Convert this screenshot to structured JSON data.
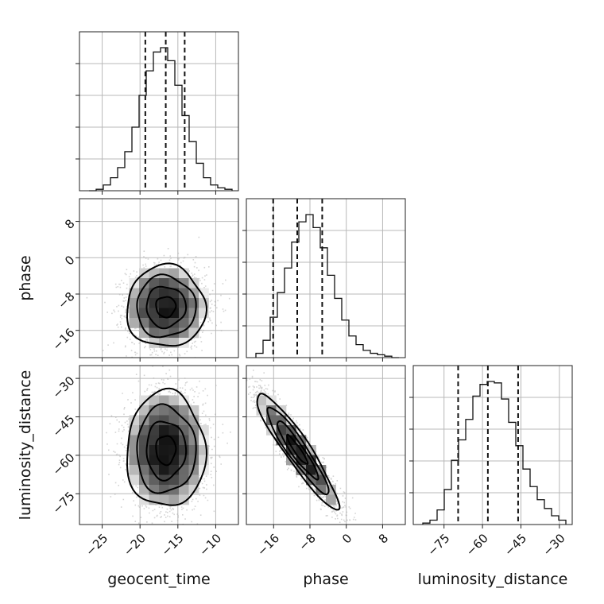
{
  "chart_data": {
    "type": "corner",
    "grid": true,
    "parameters": [
      "geocent_time",
      "phase",
      "luminosity_distance"
    ],
    "axis_labels": {
      "geocent_time": "geocent_time",
      "phase": "phase",
      "luminosity_distance": "luminosity_distance"
    },
    "ranges": {
      "geocent_time": [
        -28,
        -7
      ],
      "phase": [
        -22,
        13
      ],
      "luminosity_distance": [
        -87,
        -25
      ]
    },
    "ticks": {
      "geocent_time": [
        -25,
        -20,
        -15,
        -10
      ],
      "phase": [
        -16,
        -8,
        0,
        8
      ],
      "luminosity_distance": [
        -75,
        -60,
        -45,
        -30
      ]
    },
    "tick_labels": {
      "geocent_time": [
        "−25",
        "−20",
        "−15",
        "−10"
      ],
      "phase": [
        "−16",
        "−8",
        "0",
        "8"
      ],
      "luminosity_distance": [
        "−75",
        "−60",
        "−45",
        "−30"
      ]
    },
    "quantiles": {
      "geocent_time": [
        -19.3,
        -16.6,
        -14.1
      ],
      "phase": [
        -16.1,
        -10.8,
        -5.3
      ],
      "luminosity_distance": [
        -69.5,
        -57.9,
        -46.1
      ]
    },
    "histograms": {
      "geocent_time": [
        0,
        1,
        4,
        9,
        16,
        27,
        44,
        66,
        83,
        96,
        99,
        90,
        73,
        52,
        34,
        19,
        9,
        4,
        2,
        1
      ],
      "phase": [
        3,
        12,
        28,
        45,
        62,
        80,
        94,
        99,
        90,
        76,
        57,
        41,
        26,
        15,
        9,
        5,
        3,
        2,
        1,
        0
      ],
      "luminosity_distance": [
        1,
        3,
        10,
        24,
        44,
        58,
        72,
        88,
        96,
        98,
        97,
        86,
        70,
        54,
        38,
        26,
        17,
        11,
        6,
        3
      ]
    },
    "correlations": {
      "phase_vs_geocent_time": {
        "mean": [
          -16.6,
          -10.8
        ],
        "sd": [
          2.6,
          4.5
        ],
        "rho": 0.0
      },
      "luminosity_distance_vs_geocent_time": {
        "mean": [
          -16.6,
          -57.9
        ],
        "sd": [
          2.6,
          11.3
        ],
        "rho": 0.0
      },
      "luminosity_distance_vs_phase": {
        "mean": [
          -10.8,
          -57.9
        ],
        "sd": [
          4.5,
          11.3
        ],
        "rho": -0.93
      }
    },
    "contour_levels_sigma": [
      0.5,
      1.0,
      1.5,
      2.0
    ]
  }
}
